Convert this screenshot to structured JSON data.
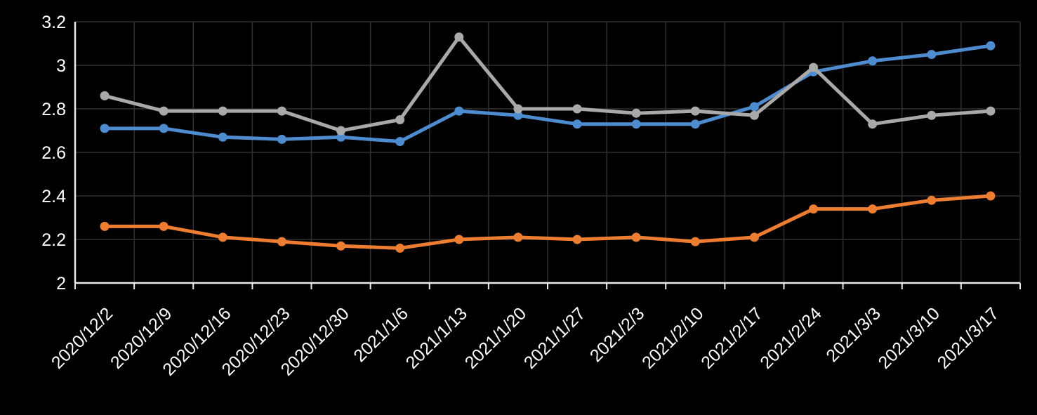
{
  "chart_data": {
    "type": "line",
    "title": "",
    "categories": [
      "2020/12/2",
      "2020/12/9",
      "2020/12/16",
      "2020/12/23",
      "2020/12/30",
      "2021/1/6",
      "2021/1/13",
      "2021/1/20",
      "2021/1/27",
      "2021/2/3",
      "2021/2/10",
      "2021/2/17",
      "2021/2/24",
      "2021/3/3",
      "2021/3/10",
      "2021/3/17"
    ],
    "series": [
      {
        "name": "blue",
        "color": "#4E8CD0",
        "marker": "circle",
        "values": [
          2.71,
          2.71,
          2.67,
          2.66,
          2.67,
          2.65,
          2.79,
          2.77,
          2.73,
          2.73,
          2.73,
          2.81,
          2.97,
          3.02,
          3.05,
          3.09
        ]
      },
      {
        "name": "orange",
        "color": "#ED7D31",
        "marker": "circle",
        "values": [
          2.26,
          2.26,
          2.21,
          2.19,
          2.17,
          2.16,
          2.2,
          2.21,
          2.2,
          2.21,
          2.19,
          2.21,
          2.34,
          2.34,
          2.38,
          2.4
        ]
      },
      {
        "name": "gray",
        "color": "#A9A9A9",
        "marker": "circle",
        "values": [
          2.86,
          2.79,
          2.79,
          2.79,
          2.7,
          2.75,
          3.13,
          2.8,
          2.8,
          2.78,
          2.79,
          2.77,
          2.99,
          2.73,
          2.77,
          2.79
        ]
      }
    ],
    "y_axis": {
      "min": 2,
      "max": 3.2,
      "step": 0.2,
      "tick_labels": [
        "3.2",
        "3",
        "2.8",
        "2.6",
        "2.4",
        "2.2",
        "2"
      ]
    },
    "x_axis": {
      "label_rotation_deg": -45
    },
    "grid": true,
    "legend_position": "none",
    "style": {
      "background": "#000000",
      "axis_color": "#EAEAEA",
      "gridline_color": "#303030",
      "tick_label_color": "#FFFFFF"
    }
  }
}
